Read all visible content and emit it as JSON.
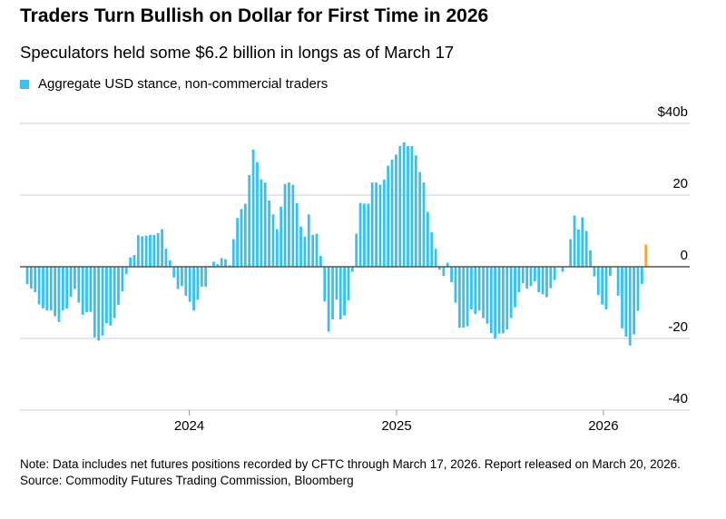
{
  "title": "Traders Turn Bullish on Dollar for First Time in 2026",
  "subtitle": "Speculators held some $6.2 billion in longs as of March 17",
  "note": "Note: Data includes net futures positions recorded by CFTC through March 17, 2026. Report released on March 20, 2026.",
  "source": "Source: Commodity Futures Trading Commission, Bloomberg",
  "colors": {
    "bar": "#38c0f3",
    "highlight": "#f7a539",
    "zero": "#555555",
    "grid": "#dddddd"
  },
  "chart_data": {
    "type": "bar",
    "legend": [
      {
        "name": "Aggregate USD stance, non-commercial traders",
        "color": "#38c0f3"
      }
    ],
    "legend_placement": "top-left",
    "unit": "USD billions",
    "frequency": "weekly",
    "last_date": "2026-03-17",
    "ylim": [
      -40,
      40
    ],
    "yticks": [
      {
        "v": 40,
        "label": "$40b"
      },
      {
        "v": 20,
        "label": "20"
      },
      {
        "v": 0,
        "label": "0"
      },
      {
        "v": -20,
        "label": "-20"
      },
      {
        "v": -40,
        "label": "-40"
      }
    ],
    "xticks": [
      {
        "date": "2024-01-01",
        "label": "2024"
      },
      {
        "date": "2025-01-01",
        "label": "2025"
      },
      {
        "date": "2026-01-01",
        "label": "2026"
      }
    ],
    "grid": true,
    "highlight_last": true,
    "values": [
      -4.8,
      -6.1,
      -7.1,
      -10.5,
      -11.6,
      -12.2,
      -12.2,
      -13.8,
      -15.4,
      -12.2,
      -11.7,
      -8.4,
      -6.2,
      -10,
      -13.4,
      -12.7,
      -12.6,
      -19.7,
      -20.6,
      -19.2,
      -15.8,
      -16.4,
      -14.3,
      -10.6,
      -6.9,
      -2,
      2.6,
      3.3,
      8.8,
      8.5,
      8.7,
      8.9,
      8.9,
      9.4,
      10.5,
      5.1,
      1.8,
      -3,
      -6.2,
      -5.4,
      -8.1,
      -9.8,
      -12.2,
      -9.2,
      -5.6,
      -5.6,
      -0.2,
      1.4,
      0.7,
      2.4,
      2.1,
      0.4,
      7.7,
      13.6,
      16.1,
      17.6,
      25.6,
      32.7,
      29.2,
      24.4,
      23.5,
      18.5,
      14.6,
      10.5,
      16.8,
      23.1,
      23.5,
      22.9,
      17.8,
      11.2,
      8.4,
      14.6,
      8.9,
      9.2,
      3.0,
      -9.7,
      -18.1,
      -14.7,
      -9.2,
      -14.7,
      -13.6,
      -9.4,
      -1.4,
      9.2,
      17.8,
      17.6,
      17.6,
      23.5,
      23.5,
      22.9,
      24.3,
      28.2,
      29.9,
      31.3,
      33.7,
      34.7,
      33.7,
      33.7,
      31.1,
      26.4,
      23.5,
      15.3,
      9.6,
      5.0,
      -0.8,
      -2.6,
      1.1,
      -4.3,
      -10,
      -17,
      -17,
      -16.6,
      -11.9,
      -13.2,
      -12.2,
      -14.3,
      -15.9,
      -18.5,
      -20,
      -18.6,
      -18.6,
      -17.5,
      -14.3,
      -11.3,
      -7.1,
      -4.6,
      -6.1,
      -5.4,
      -4.1,
      -7.1,
      -7.7,
      -8.5,
      -6.0,
      -3.7,
      0,
      -1.4,
      0,
      7.7,
      14.3,
      10.4,
      13.8,
      10.0,
      4.6,
      -2.7,
      -7.9,
      -10.5,
      -11.9,
      -2.6,
      0,
      -8.1,
      -17.2,
      -19.5,
      -22,
      -18.9,
      -12.3,
      -4.8,
      6.2
    ]
  }
}
